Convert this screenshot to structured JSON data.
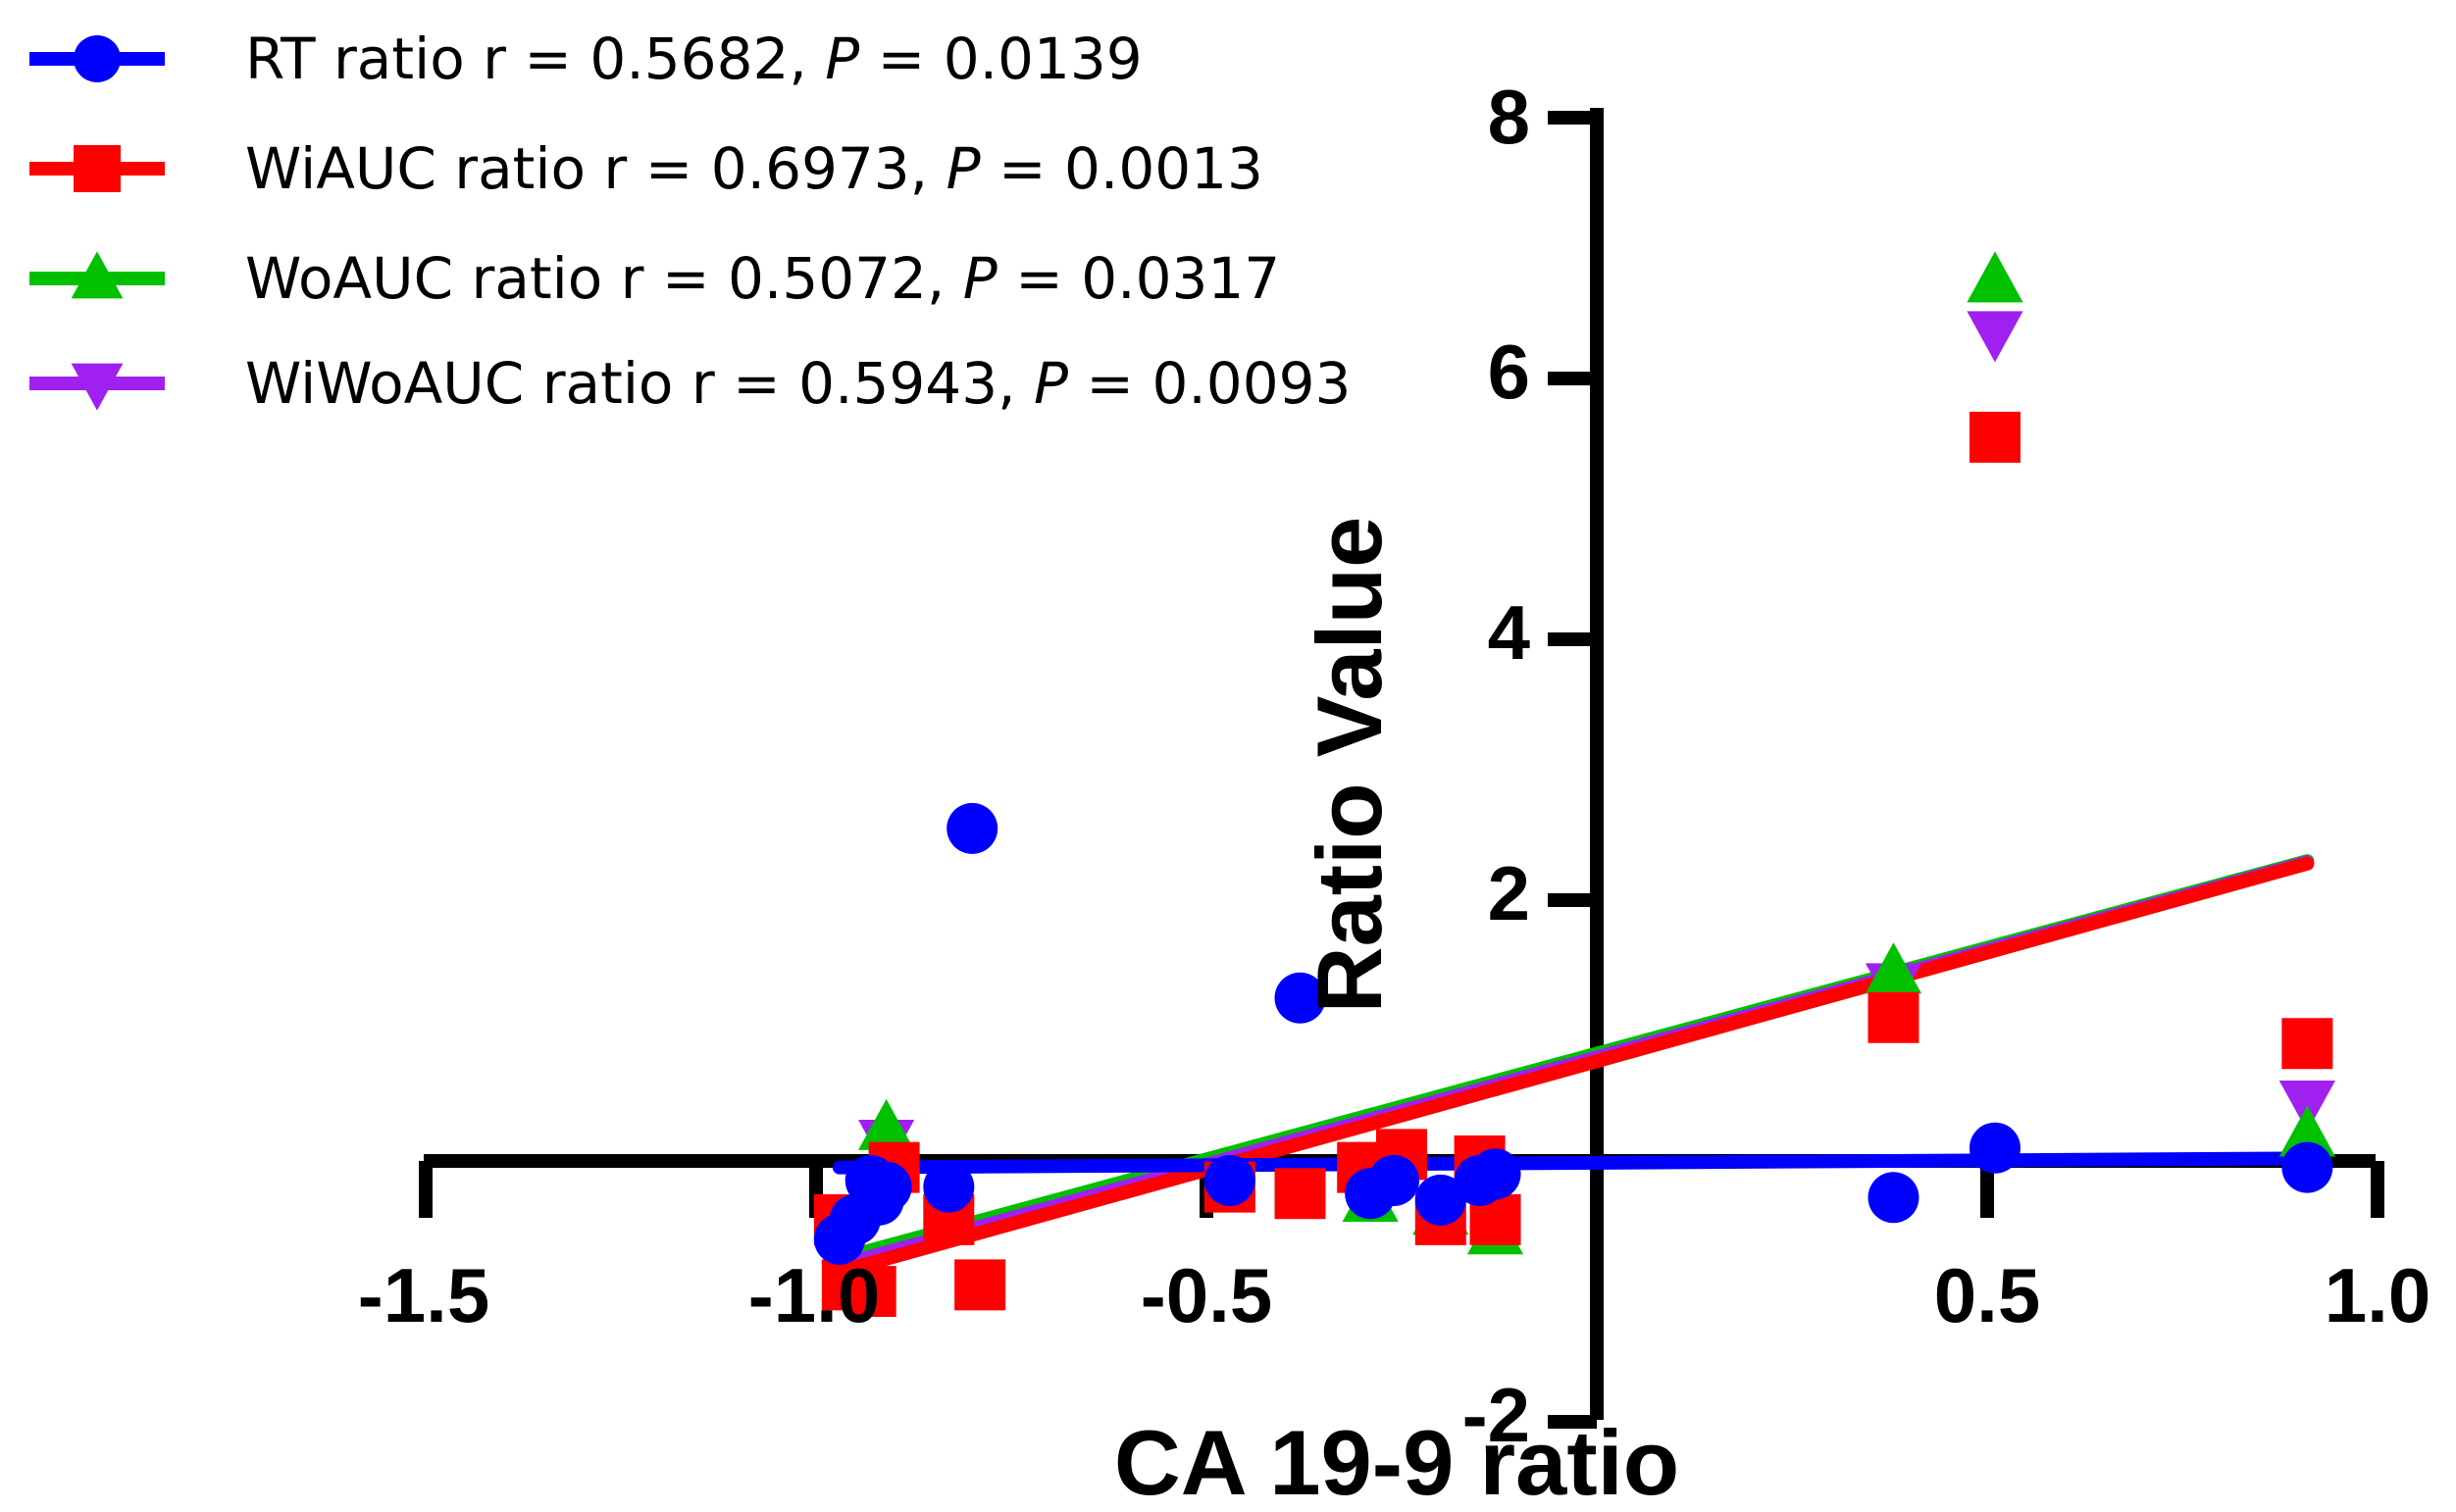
{
  "chart_data": {
    "type": "scatter",
    "title": "",
    "xlabel": "CA 19-9 ratio",
    "ylabel": "Ratio Value",
    "xlim": [
      -1.5,
      1.0
    ],
    "ylim": [
      -2,
      8
    ],
    "x_ticks": [
      "-1.5",
      "-1.0",
      "-0.5",
      "0.5",
      "1.0"
    ],
    "y_ticks": [
      "-2",
      "2",
      "4",
      "6",
      "8"
    ],
    "legend_position": "top-left",
    "series": [
      {
        "name": "RT ratio",
        "legend_prefix": "RT ratio r = 0.5682, ",
        "p_symbol": "P",
        "p_value": " = 0.0139",
        "r": 0.5682,
        "p": 0.0139,
        "color": "#0000ff",
        "marker": "circle",
        "points": [
          [
            -0.8,
            2.55
          ],
          [
            -0.38,
            1.25
          ],
          [
            -0.93,
            -0.15
          ],
          [
            -0.92,
            -0.3
          ],
          [
            -0.95,
            -0.45
          ],
          [
            -0.97,
            -0.6
          ],
          [
            -0.91,
            -0.2
          ],
          [
            -0.83,
            -0.2
          ],
          [
            -0.47,
            -0.15
          ],
          [
            -0.29,
            -0.25
          ],
          [
            -0.26,
            -0.15
          ],
          [
            -0.2,
            -0.3
          ],
          [
            -0.15,
            -0.15
          ],
          [
            -0.13,
            -0.1
          ],
          [
            0.38,
            -0.28
          ],
          [
            0.51,
            0.1
          ],
          [
            0.91,
            -0.05
          ]
        ],
        "fit": [
          [
            -0.97,
            -0.05
          ],
          [
            0.91,
            0.02
          ]
        ]
      },
      {
        "name": "WiAUC ratio",
        "legend_prefix": "WiAUC ratio r = 0.6973, ",
        "p_symbol": "P",
        "p_value": " = 0.0013",
        "r": 0.6973,
        "p": 0.0013,
        "color": "#ff0000",
        "marker": "square",
        "points": [
          [
            0.51,
            5.55
          ],
          [
            0.38,
            1.1
          ],
          [
            0.91,
            0.9
          ],
          [
            -0.97,
            -0.45
          ],
          [
            -0.96,
            -0.95
          ],
          [
            -0.93,
            -1.0
          ],
          [
            -0.9,
            -0.05
          ],
          [
            -0.83,
            -0.45
          ],
          [
            -0.79,
            -0.95
          ],
          [
            -0.47,
            -0.2
          ],
          [
            -0.38,
            -0.25
          ],
          [
            -0.3,
            -0.05
          ],
          [
            -0.25,
            0.05
          ],
          [
            -0.2,
            -0.45
          ],
          [
            -0.15,
            0.0
          ],
          [
            -0.13,
            -0.45
          ]
        ],
        "fit": [
          [
            -0.97,
            -0.85
          ],
          [
            0.91,
            2.28
          ]
        ]
      },
      {
        "name": "WoAUC ratio",
        "legend_prefix": "WoAUC ratio r = 0.5072, ",
        "p_symbol": "P",
        "p_value": " = 0.0317",
        "r": 0.5072,
        "p": 0.0317,
        "color": "#00c000",
        "marker": "triangle-up",
        "points": [
          [
            0.51,
            6.75
          ],
          [
            0.38,
            1.45
          ],
          [
            0.91,
            0.2
          ],
          [
            -0.91,
            0.25
          ],
          [
            -0.29,
            -0.3
          ],
          [
            -0.2,
            -0.4
          ],
          [
            -0.13,
            -0.55
          ]
        ],
        "fit": [
          [
            -0.97,
            -0.75
          ],
          [
            0.91,
            2.3
          ]
        ]
      },
      {
        "name": "WiWoAUC ratio",
        "legend_prefix": "WiWoAUC ratio r = 0.5943, ",
        "p_symbol": "P",
        "p_value": " = 0.0093",
        "r": 0.5943,
        "p": 0.0093,
        "color": "#a020f0",
        "marker": "triangle-down",
        "points": [
          [
            0.51,
            6.35
          ],
          [
            0.38,
            1.35
          ],
          [
            0.91,
            0.45
          ],
          [
            -0.91,
            0.15
          ]
        ],
        "fit": [
          [
            -0.97,
            -0.8
          ],
          [
            0.91,
            2.29
          ]
        ]
      }
    ]
  }
}
